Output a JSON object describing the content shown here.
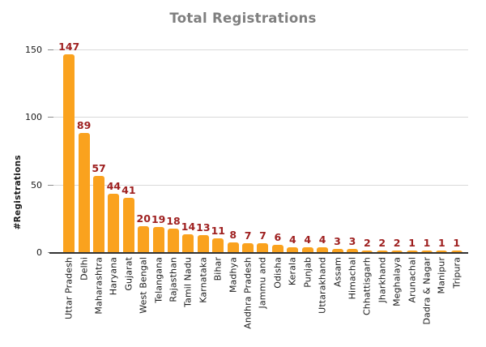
{
  "chart_data": {
    "type": "bar",
    "title": "Total Registrations",
    "xlabel": "",
    "ylabel": "#Registrations",
    "categories": [
      "Uttar Pradesh",
      "Delhi",
      "Maharashtra",
      "Haryana",
      "Gujarat",
      "West Bengal",
      "Telangana",
      "Rajasthan",
      "Tamil Nadu",
      "Karnataka",
      "Bihar",
      "Madhya",
      "Andhra Pradesh",
      "Jammu and",
      "Odisha",
      "Kerala",
      "Punjab",
      "Uttarakhand",
      "Assam",
      "Himachal",
      "Chhattisgarh",
      "Jharkhand",
      "Meghalaya",
      "Arunachal",
      "Dadra & Nagar",
      "Manipur",
      "Tripura"
    ],
    "values": [
      147,
      89,
      57,
      44,
      41,
      20,
      19,
      18,
      14,
      13,
      11,
      8,
      7,
      7,
      6,
      4,
      4,
      4,
      3,
      3,
      2,
      2,
      2,
      1,
      1,
      1,
      1
    ],
    "data_labels_shown": true,
    "ylim": [
      0,
      150
    ],
    "yticks": [
      0,
      50,
      100,
      150
    ],
    "grid": true,
    "legend": "none",
    "colors": {
      "bar": "#FAA21E",
      "value_label": "#9E1F1F",
      "title": "#7F7F7F",
      "axis_text": "#1A1A1A",
      "gridline": "#D9D9D9",
      "axis_line": "#333333"
    }
  }
}
